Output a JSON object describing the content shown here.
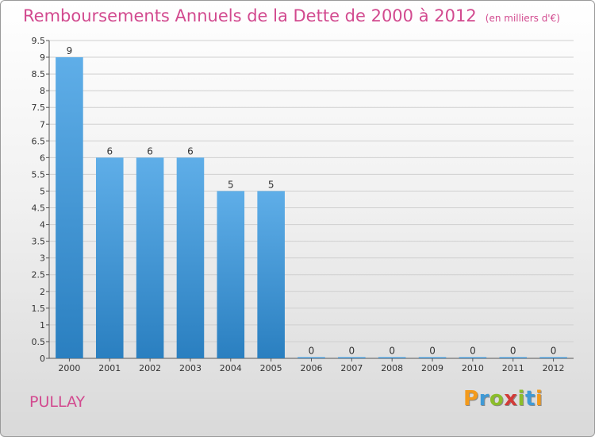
{
  "page": {
    "title": "Remboursements Annuels de la Dette de 2000 à 2012",
    "subtitle": "(en milliers d'€)",
    "commune": "PULLAY",
    "logo_letters": [
      "P",
      "r",
      "o",
      "x",
      "i",
      "t",
      "i"
    ],
    "logo_colors": [
      "#f39a1c",
      "#3f9ad6",
      "#8bbd2a",
      "#d23b38",
      "#8bbd2a",
      "#3f9ad6",
      "#f39a1c"
    ]
  },
  "colors": {
    "title": "#d24a8f",
    "bar_top": "#5faee8",
    "bar_bottom": "#2a7fc0",
    "grid": "#cfcfcf",
    "axis": "#555555",
    "text": "#333333"
  },
  "chart_data": {
    "type": "bar",
    "title": "Remboursements Annuels de la Dette de 2000 à 2012",
    "subtitle": "(en milliers d'€)",
    "categories": [
      "2000",
      "2001",
      "2002",
      "2003",
      "2004",
      "2005",
      "2006",
      "2007",
      "2008",
      "2009",
      "2010",
      "2011",
      "2012"
    ],
    "values": [
      9,
      6,
      6,
      6,
      5,
      5,
      0,
      0,
      0,
      0,
      0,
      0,
      0
    ],
    "data_labels": [
      "9",
      "6",
      "6",
      "6",
      "5",
      "5",
      "0",
      "0",
      "0",
      "0",
      "0",
      "0",
      "0"
    ],
    "yticks": [
      "0",
      "0.5",
      "1",
      "1.5",
      "2",
      "2.5",
      "3",
      "3.5",
      "4",
      "4.5",
      "5",
      "5.5",
      "6",
      "6.5",
      "7",
      "7.5",
      "8",
      "8.5",
      "9",
      "9.5"
    ],
    "ylim": [
      0,
      9.5
    ],
    "grid": true,
    "legend": "none"
  }
}
